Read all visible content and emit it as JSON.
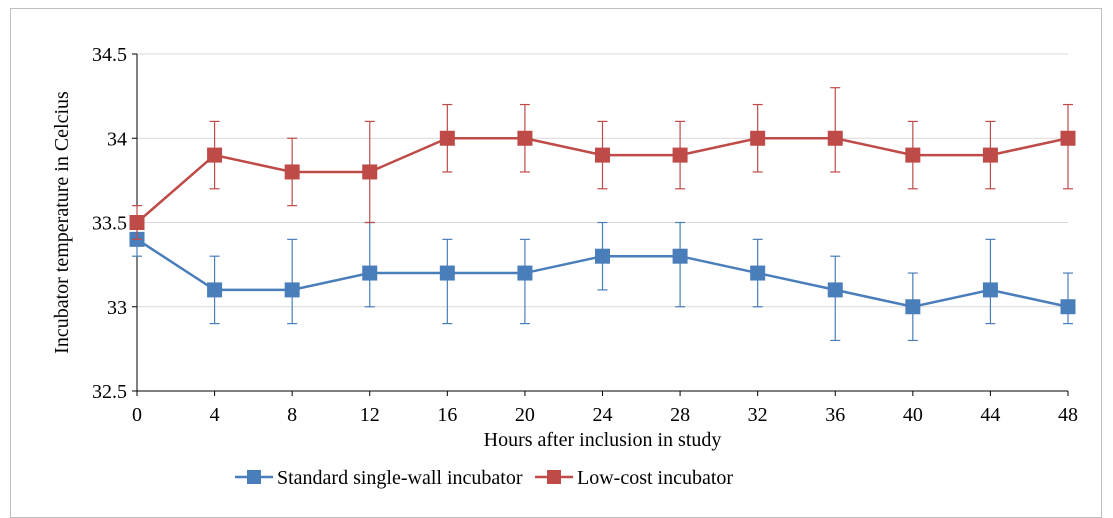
{
  "chart_data": {
    "type": "line",
    "title": "",
    "xlabel": "Hours after inclusion in study",
    "ylabel": "Incubator temperature in Celcius",
    "x": [
      0,
      4,
      8,
      12,
      16,
      20,
      24,
      28,
      32,
      36,
      40,
      44,
      48
    ],
    "x_tick_labels": [
      "0",
      "4",
      "8",
      "12",
      "16",
      "20",
      "24",
      "28",
      "32",
      "36",
      "40",
      "44",
      "48"
    ],
    "ylim": [
      32.5,
      34.5
    ],
    "y_tick_labels": [
      "32.5",
      "33",
      "33.5",
      "34",
      "34.5"
    ],
    "y_ticks": [
      32.5,
      33,
      33.5,
      34,
      34.5
    ],
    "grid": true,
    "legend_position": "bottom",
    "series": [
      {
        "name": "Standard single-wall incubator",
        "color": "#4a7ebb",
        "marker": "square",
        "values": [
          33.4,
          33.1,
          33.1,
          33.2,
          33.2,
          33.2,
          33.3,
          33.3,
          33.2,
          33.1,
          33.0,
          33.1,
          33.0
        ],
        "error_low": [
          33.3,
          32.9,
          32.9,
          33.0,
          32.9,
          32.9,
          33.1,
          33.0,
          33.0,
          32.8,
          32.8,
          32.9,
          32.9
        ],
        "error_high": [
          33.5,
          33.3,
          33.4,
          33.5,
          33.4,
          33.4,
          33.5,
          33.5,
          33.4,
          33.3,
          33.2,
          33.4,
          33.2
        ]
      },
      {
        "name": "Low-cost incubator",
        "color": "#be4b48",
        "marker": "square",
        "values": [
          33.5,
          33.9,
          33.8,
          33.8,
          34.0,
          34.0,
          33.9,
          33.9,
          34.0,
          34.0,
          33.9,
          33.9,
          34.0
        ],
        "error_low": [
          33.4,
          33.7,
          33.6,
          33.5,
          33.8,
          33.8,
          33.7,
          33.7,
          33.8,
          33.8,
          33.7,
          33.7,
          33.7
        ],
        "error_high": [
          33.6,
          34.1,
          34.0,
          34.1,
          34.2,
          34.2,
          34.1,
          34.1,
          34.2,
          34.3,
          34.1,
          34.1,
          34.2
        ]
      }
    ]
  }
}
